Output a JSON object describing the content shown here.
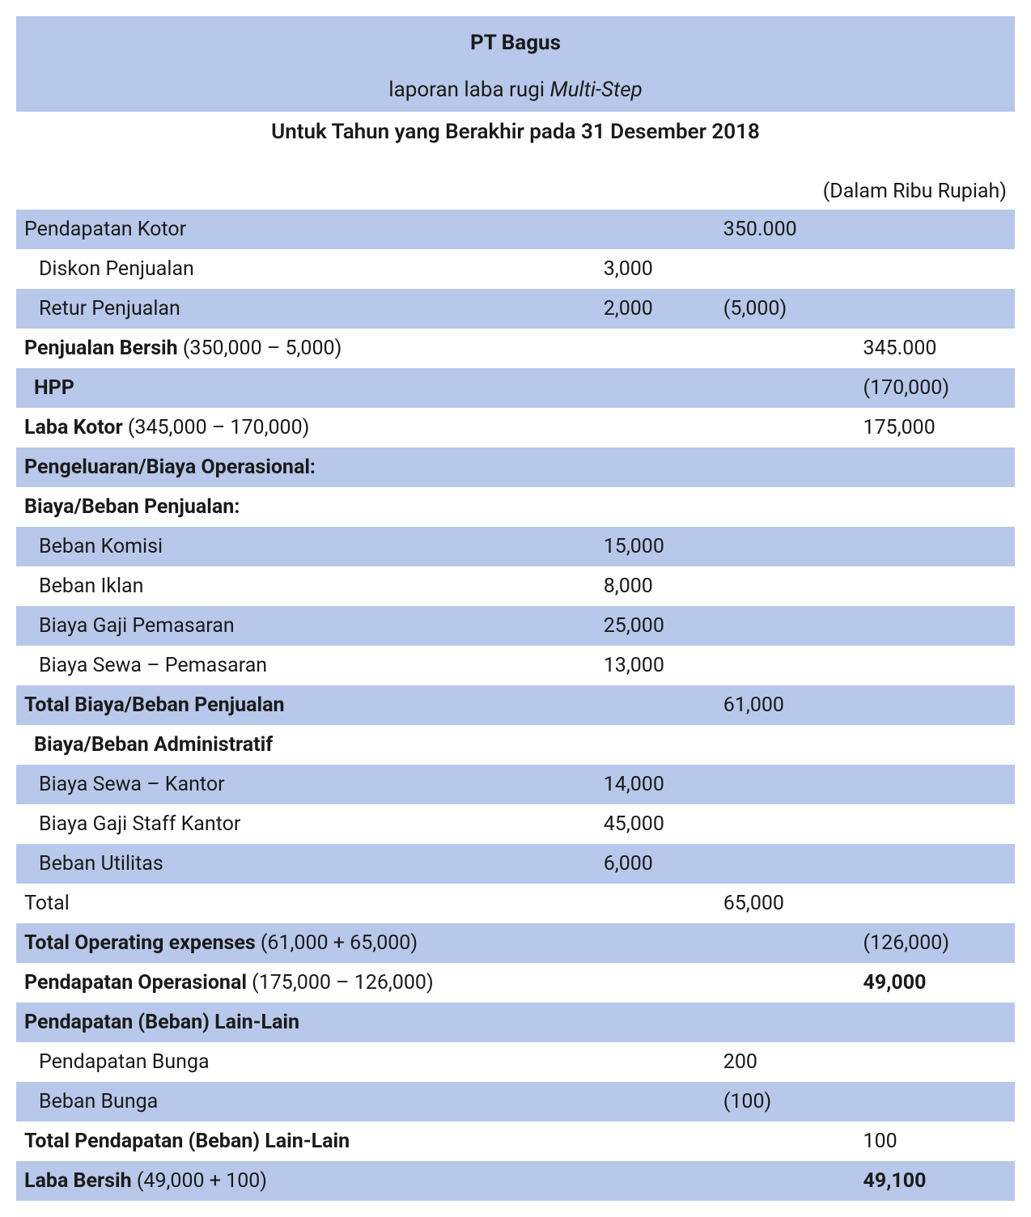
{
  "header": {
    "company": "PT Bagus",
    "report_prefix": "laporan laba rugi ",
    "report_italic": "Multi-Step",
    "period": "Untuk Tahun yang Berakhir pada 31 Desember 2018",
    "unit": "(Dalam Ribu Rupiah)"
  },
  "table": {
    "type": "table",
    "columns": [
      "label",
      "col1",
      "col2",
      "col3"
    ],
    "background_colors": {
      "blue": "#b8c8ea",
      "white": "#ffffff"
    },
    "font_size": 25,
    "rows": [
      {
        "bg": "blue",
        "label": "Pendapatan Kotor",
        "indent": 0,
        "col1": "",
        "col2": "350.000",
        "col3": ""
      },
      {
        "bg": "white",
        "label": "Diskon Penjualan",
        "indent": 1,
        "col1": "3,000",
        "col2": "",
        "col3": ""
      },
      {
        "bg": "blue",
        "label": "Retur Penjualan",
        "indent": 1,
        "col1": "2,000",
        "col2": "(5,000)",
        "col3": ""
      },
      {
        "bg": "white",
        "label_bold": "Penjualan Bersih",
        "label_rest": " (350,000 – 5,000)",
        "indent": 0,
        "col1": "",
        "col2": "",
        "col3": "345.000"
      },
      {
        "bg": "blue",
        "label_bold": "HPP",
        "indent": 2,
        "col1": "",
        "col2": "",
        "col3": "(170,000)"
      },
      {
        "bg": "white",
        "label_bold": "Laba Kotor",
        "label_rest": " (345,000 – 170,000)",
        "indent": 0,
        "col1": "",
        "col2": "",
        "col3": "175,000"
      },
      {
        "bg": "blue",
        "label_bold": "Pengeluaran/Biaya Operasional:",
        "indent": 0,
        "col1": "",
        "col2": "",
        "col3": ""
      },
      {
        "bg": "white",
        "label_bold": "Biaya/Beban Penjualan:",
        "indent": 0,
        "col1": "",
        "col2": "",
        "col3": ""
      },
      {
        "bg": "blue",
        "label": "Beban Komisi",
        "indent": 1,
        "col1": "15,000",
        "col2": "",
        "col3": ""
      },
      {
        "bg": "white",
        "label": "Beban Iklan",
        "indent": 1,
        "col1": "8,000",
        "col2": "",
        "col3": ""
      },
      {
        "bg": "blue",
        "label": "Biaya Gaji Pemasaran",
        "indent": 1,
        "col1": "25,000",
        "col2": "",
        "col3": ""
      },
      {
        "bg": "white",
        "label": "Biaya Sewa – Pemasaran",
        "indent": 1,
        "col1": "13,000",
        "col2": "",
        "col3": ""
      },
      {
        "bg": "blue",
        "label_bold": "Total Biaya/Beban Penjualan",
        "indent": 0,
        "col1": "",
        "col2": "61,000",
        "col3": ""
      },
      {
        "bg": "white",
        "label_bold": "Biaya/Beban Administratif",
        "indent": 2,
        "col1": "",
        "col2": "",
        "col3": ""
      },
      {
        "bg": "blue",
        "label": "Biaya Sewa – Kantor",
        "indent": 1,
        "col1": "14,000",
        "col2": "",
        "col3": ""
      },
      {
        "bg": "white",
        "label": "Biaya Gaji Staff Kantor",
        "indent": 1,
        "col1": "45,000",
        "col2": "",
        "col3": ""
      },
      {
        "bg": "blue",
        "label": "Beban Utilitas",
        "indent": 1,
        "col1": "6,000",
        "col2": "",
        "col3": ""
      },
      {
        "bg": "white",
        "label": "Total",
        "indent": 0,
        "col1": "",
        "col2": "65,000",
        "col3": ""
      },
      {
        "bg": "blue",
        "label_bold": "Total Operating expenses",
        "label_rest": " (61,000 + 65,000)",
        "indent": 0,
        "col1": "",
        "col2": "",
        "col3": "(126,000)"
      },
      {
        "bg": "white",
        "label_bold": "Pendapatan Operasional",
        "label_rest": " (175,000 – 126,000)",
        "indent": 0,
        "col1": "",
        "col2": "",
        "col3": "49,000",
        "col3_bold": true
      },
      {
        "bg": "blue",
        "label_bold": "Pendapatan (Beban) Lain-Lain",
        "indent": 0,
        "col1": "",
        "col2": "",
        "col3": ""
      },
      {
        "bg": "white",
        "label": "Pendapatan Bunga",
        "indent": 1,
        "col1": "",
        "col2": "200",
        "col3": ""
      },
      {
        "bg": "blue",
        "label": "Beban Bunga",
        "indent": 1,
        "col1": "",
        "col2": "(100)",
        "col3": ""
      },
      {
        "bg": "white",
        "label_bold": "Total Pendapatan (Beban) Lain-Lain",
        "indent": 0,
        "col1": "",
        "col2": "",
        "col3": "100"
      },
      {
        "bg": "blue",
        "label_bold": "Laba Bersih",
        "label_rest": " (49,000 + 100)",
        "indent": 0,
        "col1": "",
        "col2": "",
        "col3": "49,100",
        "col3_bold": true
      }
    ]
  }
}
